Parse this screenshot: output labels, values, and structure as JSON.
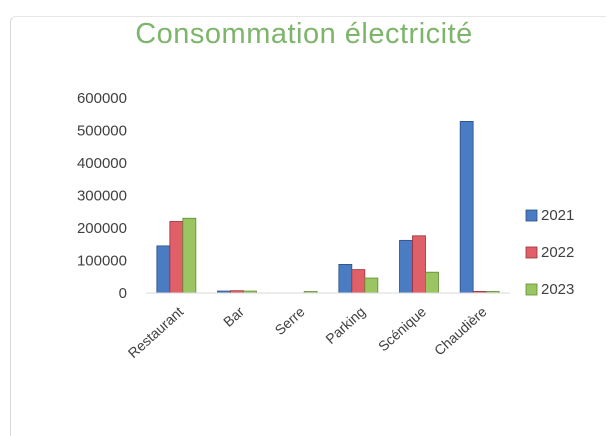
{
  "colors": {
    "title": "#7db56a",
    "series": [
      "#4a7cc4",
      "#e0606a",
      "#9bc561"
    ],
    "series_stroke": [
      "#2c4f86",
      "#9a3038",
      "#5e8a33"
    ]
  },
  "chart_data": {
    "type": "bar",
    "title": "Consommation électricité",
    "categories": [
      "Restaurant",
      "Bar",
      "Serre",
      "Parking",
      "Scénique",
      "Chaudière"
    ],
    "series": [
      {
        "name": "2021",
        "values": [
          145000,
          6000,
          0,
          88000,
          162000,
          528000
        ]
      },
      {
        "name": "2022",
        "values": [
          220000,
          7000,
          0,
          72000,
          176000,
          5000
        ]
      },
      {
        "name": "2023",
        "values": [
          230000,
          6000,
          3000,
          46000,
          64000,
          4000
        ]
      }
    ],
    "xlabel": "",
    "ylabel": "",
    "ylim": [
      0,
      600000
    ],
    "yticks": [
      "600000",
      "500000",
      "400000",
      "300000",
      "200000",
      "100000",
      "0"
    ],
    "legend": "right",
    "grid": false
  }
}
